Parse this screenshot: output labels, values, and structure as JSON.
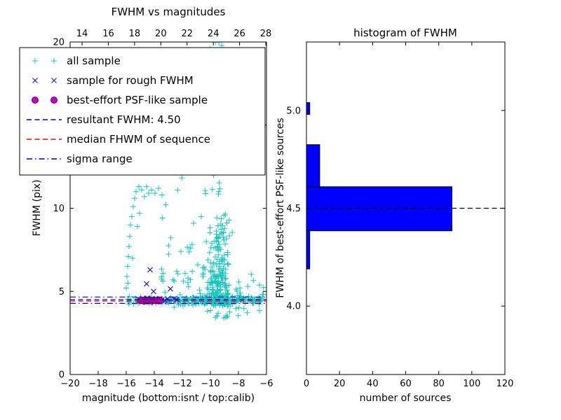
{
  "figure": {
    "background": "#ffffff"
  },
  "colors": {
    "all_sample": "#17c4bd",
    "rough": "#1d1dcc",
    "psf_fill": "#bf00bf",
    "psf_edge": "#6e006e",
    "resultant_line": "#0000cc",
    "median_line": "#ff0000",
    "sigma_line": "#0000cc",
    "hist_fill": "#0000ff",
    "hist_edge": "#000000",
    "hist_median_line": "#000000",
    "axis": "#000000"
  },
  "chart_data": [
    {
      "type": "scatter",
      "title": "FWHM vs magnitudes",
      "xlabel": "magnitude (bottom:isnt / top:calib)",
      "ylabel": "FWHM (pix)",
      "xlim": [
        -20,
        -6
      ],
      "ylim": [
        0,
        20
      ],
      "top_axis_lim": [
        13.09,
        28.05
      ],
      "x_ticks_bottom": [
        -20,
        -18,
        -16,
        -14,
        -12,
        -10,
        -8,
        -6
      ],
      "x_ticks_top": [
        14,
        16,
        18,
        20,
        22,
        24,
        26,
        28
      ],
      "y_ticks": [
        0,
        5,
        10,
        15,
        20
      ],
      "series": [
        {
          "name": "all sample",
          "marker": "plus",
          "color_key": "all_sample",
          "clusters": [
            {
              "n": 190,
              "x": {
                "dist": "uniform",
                "a": -15.9,
                "b": -6.1
              },
              "y": {
                "dist": "normal",
                "mu": 4.45,
                "sd": 0.1
              }
            },
            {
              "n": 80,
              "x": {
                "dist": "uniform",
                "a": -12.6,
                "b": -8.6
              },
              "y": {
                "dist": "normal",
                "mu": 4.45,
                "sd": 0.16
              }
            },
            {
              "n": 220,
              "x": {
                "dist": "normal",
                "mu": -9.4,
                "sd": 0.5
              },
              "y": {
                "dist": "exp",
                "base": 4.1,
                "scale": 2.3,
                "max": 14.5
              }
            },
            {
              "n": 26,
              "x": {
                "dist": "normal",
                "mu": -9.3,
                "sd": 0.55
              },
              "y": {
                "dist": "uniform",
                "a": 11.5,
                "b": 18.2
              }
            },
            {
              "n": 16,
              "x": {
                "dist": "uniform",
                "a": -10.1,
                "b": -8.4
              },
              "y": {
                "dist": "uniform",
                "a": 18.4,
                "b": 20.0
              }
            },
            {
              "n": 30,
              "x": {
                "dist": "uniform",
                "a": -13.6,
                "b": -10.3
              },
              "y": {
                "dist": "exp",
                "base": 4.9,
                "scale": 2.0,
                "max": 13.0
              }
            },
            {
              "n": 16,
              "x": {
                "dist": "uniform",
                "a": -10.5,
                "b": -6.4
              },
              "y": {
                "dist": "uniform",
                "a": 3.4,
                "b": 4.15
              }
            },
            {
              "n": 24,
              "x": {
                "dist": "uniform",
                "a": -8.3,
                "b": -6.2
              },
              "y": {
                "dist": "normal",
                "mu": 4.7,
                "sd": 0.5
              }
            }
          ],
          "extra_points": [
            [
              -16.0,
              5.2
            ],
            [
              -15.95,
              5.9
            ],
            [
              -15.9,
              6.5
            ],
            [
              -15.85,
              7.1
            ],
            [
              -15.8,
              7.7
            ],
            [
              -15.75,
              8.3
            ],
            [
              -15.7,
              9.0
            ],
            [
              -15.6,
              9.5
            ],
            [
              -15.5,
              10.1
            ],
            [
              -15.4,
              10.6
            ],
            [
              -15.3,
              11.0
            ],
            [
              -15.1,
              11.3
            ],
            [
              -14.9,
              11.1
            ],
            [
              -14.75,
              12.5
            ],
            [
              -14.7,
              10.7
            ],
            [
              -14.55,
              11.3
            ],
            [
              -14.4,
              10.9
            ],
            [
              -14.2,
              11.1
            ],
            [
              -13.95,
              10.9
            ],
            [
              -13.7,
              11.2
            ],
            [
              -13.45,
              10.8
            ],
            [
              -15.2,
              8.9
            ],
            [
              -15.55,
              7.0
            ],
            [
              -15.88,
              5.5
            ],
            [
              -15.05,
              9.7
            ],
            [
              -12.4,
              6.2
            ],
            [
              -12.1,
              7.4
            ],
            [
              -11.6,
              5.8
            ],
            [
              -11.2,
              9.1
            ],
            [
              -10.9,
              6.6
            ]
          ]
        },
        {
          "name": "sample for rough FWHM",
          "marker": "x",
          "color_key": "rough",
          "points": [
            [
              -15.05,
              4.5
            ],
            [
              -14.85,
              4.56
            ],
            [
              -14.65,
              4.46
            ],
            [
              -14.5,
              4.6
            ],
            [
              -14.35,
              4.5
            ],
            [
              -14.15,
              4.56
            ],
            [
              -13.95,
              4.46
            ],
            [
              -13.8,
              4.52
            ],
            [
              -13.6,
              4.56
            ],
            [
              -13.45,
              4.5
            ],
            [
              -13.25,
              4.46
            ],
            [
              -13.05,
              4.55
            ],
            [
              -14.55,
              5.45
            ],
            [
              -14.3,
              6.3
            ],
            [
              -14.05,
              5.0
            ],
            [
              -12.85,
              5.15
            ],
            [
              -12.6,
              4.55
            ],
            [
              -12.4,
              4.5
            ]
          ]
        },
        {
          "name": "best-effort PSF-like sample",
          "marker": "circle",
          "color_key": "psf_fill",
          "edge_color_key": "psf_edge",
          "points": [
            [
              -15.0,
              4.44
            ],
            [
              -14.88,
              4.47
            ],
            [
              -14.76,
              4.42
            ],
            [
              -14.64,
              4.46
            ],
            [
              -14.52,
              4.43
            ],
            [
              -14.4,
              4.47
            ],
            [
              -14.28,
              4.44
            ],
            [
              -14.16,
              4.42
            ],
            [
              -14.04,
              4.46
            ],
            [
              -13.92,
              4.44
            ],
            [
              -13.8,
              4.47
            ],
            [
              -13.68,
              4.43
            ],
            [
              -13.56,
              4.45
            ]
          ]
        }
      ],
      "lines": [
        {
          "name": "resultant FWHM: 4.50",
          "y": 4.5,
          "style": "dashed",
          "color_key": "resultant_line"
        },
        {
          "name": "median FHWM of sequence",
          "y": 4.42,
          "style": "dashed",
          "color_key": "median_line"
        },
        {
          "name": "sigma range upper",
          "y": 4.66,
          "style": "dashdot",
          "color_key": "sigma_line"
        },
        {
          "name": "sigma range lower",
          "y": 4.28,
          "style": "dashdot",
          "color_key": "sigma_line"
        }
      ]
    },
    {
      "type": "bar",
      "orientation": "horizontal",
      "title": "histogram of FWHM",
      "xlabel": "number of sources",
      "ylabel": "FWHM of best-effort PSF-like sources",
      "xlim": [
        0,
        120
      ],
      "ylim": [
        3.65,
        5.35
      ],
      "x_ticks": [
        0,
        20,
        40,
        60,
        80,
        100,
        120
      ],
      "y_ticks": [
        4.0,
        4.5,
        5.0
      ],
      "bars": [
        {
          "y0": 4.19,
          "y1": 4.385,
          "value": 2
        },
        {
          "y0": 4.385,
          "y1": 4.61,
          "value": 88
        },
        {
          "y0": 4.61,
          "y1": 4.825,
          "value": 8
        },
        {
          "y0": 4.98,
          "y1": 5.04,
          "value": 2
        }
      ],
      "median_line_y": 4.5
    }
  ],
  "legend": {
    "items": [
      {
        "label": "all sample",
        "type": "marker",
        "marker": "plus",
        "color_key": "all_sample"
      },
      {
        "label": "sample for rough FWHM",
        "type": "marker",
        "marker": "x",
        "color_key": "rough"
      },
      {
        "label": "best-effort PSF-like sample",
        "type": "marker",
        "marker": "circle",
        "color_key": "psf_fill"
      },
      {
        "label": "resultant FWHM: 4.50",
        "type": "line",
        "style": "dashed",
        "color_key": "resultant_line"
      },
      {
        "label": "median FHWM of sequence",
        "type": "line",
        "style": "dashed",
        "color_key": "median_line"
      },
      {
        "label": "sigma range",
        "type": "line",
        "style": "dashdot",
        "color_key": "sigma_line"
      }
    ]
  }
}
